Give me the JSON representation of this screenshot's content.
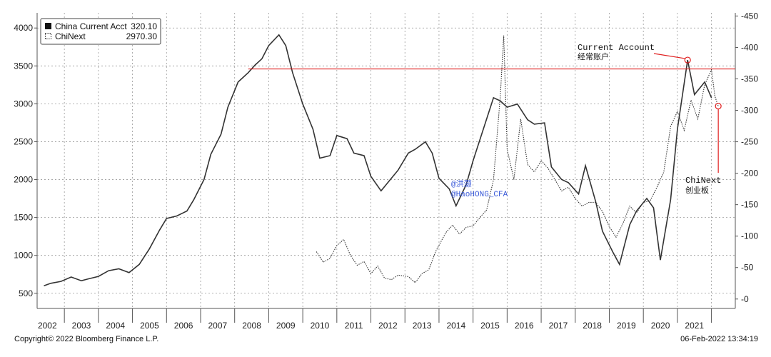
{
  "chart_data": {
    "type": "line",
    "legend": {
      "placement": "top-left",
      "items": [
        {
          "name": "China Current Acct",
          "value": "320.10",
          "style": "solid"
        },
        {
          "name": "ChiNext",
          "value": "2970.30",
          "style": "dotted"
        }
      ]
    },
    "x_ticks": [
      "2002",
      "2003",
      "2004",
      "2005",
      "2006",
      "2007",
      "2008",
      "2009",
      "2010",
      "2011",
      "2012",
      "2013",
      "2014",
      "2015",
      "2016",
      "2017",
      "2018",
      "2019",
      "2020",
      "2021"
    ],
    "left_axis": {
      "ylim": [
        300,
        4200
      ],
      "ticks": [
        500,
        1000,
        1500,
        2000,
        2500,
        3000,
        3500,
        4000
      ]
    },
    "right_axis": {
      "ylim": [
        -15,
        455
      ],
      "ticks": [
        0,
        50,
        100,
        150,
        200,
        250,
        300,
        350,
        400,
        450
      ]
    },
    "grid": true,
    "series": [
      {
        "name": "China Current Acct",
        "axis": "right",
        "style": "solid",
        "color": "#333333",
        "points": [
          [
            2001.9,
            21
          ],
          [
            2002.1,
            25
          ],
          [
            2002.4,
            28
          ],
          [
            2002.7,
            35
          ],
          [
            2003.0,
            29
          ],
          [
            2003.2,
            32
          ],
          [
            2003.5,
            36
          ],
          [
            2003.8,
            45
          ],
          [
            2004.1,
            48
          ],
          [
            2004.4,
            42
          ],
          [
            2004.7,
            55
          ],
          [
            2005.0,
            80
          ],
          [
            2005.3,
            110
          ],
          [
            2005.5,
            128
          ],
          [
            2005.8,
            132
          ],
          [
            2006.1,
            140
          ],
          [
            2006.3,
            158
          ],
          [
            2006.6,
            190
          ],
          [
            2006.8,
            230
          ],
          [
            2007.1,
            262
          ],
          [
            2007.3,
            305
          ],
          [
            2007.6,
            345
          ],
          [
            2007.9,
            360
          ],
          [
            2008.1,
            372
          ],
          [
            2008.3,
            382
          ],
          [
            2008.5,
            403
          ],
          [
            2008.8,
            420
          ],
          [
            2009.0,
            403
          ],
          [
            2009.2,
            360
          ],
          [
            2009.5,
            310
          ],
          [
            2009.8,
            270
          ],
          [
            2010.0,
            224
          ],
          [
            2010.3,
            228
          ],
          [
            2010.5,
            260
          ],
          [
            2010.8,
            255
          ],
          [
            2011.0,
            232
          ],
          [
            2011.3,
            228
          ],
          [
            2011.5,
            195
          ],
          [
            2011.8,
            172
          ],
          [
            2012.1,
            192
          ],
          [
            2012.3,
            205
          ],
          [
            2012.6,
            232
          ],
          [
            2012.8,
            238
          ],
          [
            2013.1,
            250
          ],
          [
            2013.3,
            232
          ],
          [
            2013.5,
            192
          ],
          [
            2013.8,
            175
          ],
          [
            2014.0,
            148
          ],
          [
            2014.3,
            182
          ],
          [
            2014.5,
            220
          ],
          [
            2014.8,
            270
          ],
          [
            2015.1,
            320
          ],
          [
            2015.3,
            315
          ],
          [
            2015.5,
            305
          ],
          [
            2015.8,
            310
          ],
          [
            2016.1,
            285
          ],
          [
            2016.3,
            278
          ],
          [
            2016.6,
            280
          ],
          [
            2016.8,
            210
          ],
          [
            2017.1,
            190
          ],
          [
            2017.3,
            185
          ],
          [
            2017.6,
            167
          ],
          [
            2017.8,
            212
          ],
          [
            2018.1,
            155
          ],
          [
            2018.3,
            108
          ],
          [
            2018.6,
            75
          ],
          [
            2018.8,
            55
          ],
          [
            2019.1,
            118
          ],
          [
            2019.3,
            140
          ],
          [
            2019.6,
            160
          ],
          [
            2019.8,
            145
          ],
          [
            2020.0,
            62
          ],
          [
            2020.3,
            158
          ],
          [
            2020.5,
            270
          ],
          [
            2020.8,
            380
          ],
          [
            2021.0,
            325
          ],
          [
            2021.3,
            345
          ],
          [
            2021.5,
            320
          ]
        ]
      },
      {
        "name": "ChiNext",
        "axis": "left",
        "style": "dotted",
        "color": "#333333",
        "points": [
          [
            2009.9,
            1050
          ],
          [
            2010.1,
            910
          ],
          [
            2010.3,
            960
          ],
          [
            2010.5,
            1130
          ],
          [
            2010.7,
            1210
          ],
          [
            2010.9,
            1000
          ],
          [
            2011.1,
            870
          ],
          [
            2011.3,
            920
          ],
          [
            2011.5,
            760
          ],
          [
            2011.7,
            860
          ],
          [
            2011.9,
            700
          ],
          [
            2012.1,
            680
          ],
          [
            2012.3,
            740
          ],
          [
            2012.6,
            720
          ],
          [
            2012.8,
            640
          ],
          [
            2013.0,
            760
          ],
          [
            2013.2,
            810
          ],
          [
            2013.4,
            1050
          ],
          [
            2013.7,
            1300
          ],
          [
            2013.9,
            1400
          ],
          [
            2014.1,
            1280
          ],
          [
            2014.3,
            1370
          ],
          [
            2014.5,
            1390
          ],
          [
            2014.7,
            1500
          ],
          [
            2014.9,
            1600
          ],
          [
            2015.1,
            2000
          ],
          [
            2015.3,
            3100
          ],
          [
            2015.4,
            3900
          ],
          [
            2015.5,
            2400
          ],
          [
            2015.7,
            2000
          ],
          [
            2015.9,
            2800
          ],
          [
            2016.1,
            2200
          ],
          [
            2016.3,
            2100
          ],
          [
            2016.5,
            2250
          ],
          [
            2016.7,
            2150
          ],
          [
            2016.9,
            2000
          ],
          [
            2017.1,
            1850
          ],
          [
            2017.3,
            1900
          ],
          [
            2017.5,
            1750
          ],
          [
            2017.7,
            1650
          ],
          [
            2017.9,
            1700
          ],
          [
            2018.1,
            1700
          ],
          [
            2018.3,
            1580
          ],
          [
            2018.5,
            1380
          ],
          [
            2018.7,
            1240
          ],
          [
            2018.9,
            1420
          ],
          [
            2019.1,
            1650
          ],
          [
            2019.3,
            1560
          ],
          [
            2019.5,
            1700
          ],
          [
            2019.7,
            1720
          ],
          [
            2019.9,
            1900
          ],
          [
            2020.1,
            2100
          ],
          [
            2020.3,
            2700
          ],
          [
            2020.5,
            2900
          ],
          [
            2020.7,
            2650
          ],
          [
            2020.9,
            3050
          ],
          [
            2021.1,
            2800
          ],
          [
            2021.3,
            3250
          ],
          [
            2021.5,
            3450
          ],
          [
            2021.6,
            3100
          ],
          [
            2021.7,
            2970
          ]
        ]
      }
    ],
    "reference_line": {
      "axis": "left",
      "value": 3460,
      "color": "#e02020"
    },
    "annotations": [
      {
        "text": "Current Account",
        "sub": "经常账户",
        "at": [
          2020.8,
          380
        ],
        "color": "#e02020"
      },
      {
        "text": "ChiNext",
        "sub": "创业板",
        "at": [
          2021.7,
          2970
        ],
        "color": "#e02020"
      }
    ],
    "watermark": [
      "@洪灏",
      "@HaoHONG_CFA"
    ],
    "copyright": "Copyright© 2022 Bloomberg Finance L.P.",
    "timestamp": "06-Feb-2022 13:34:19"
  }
}
